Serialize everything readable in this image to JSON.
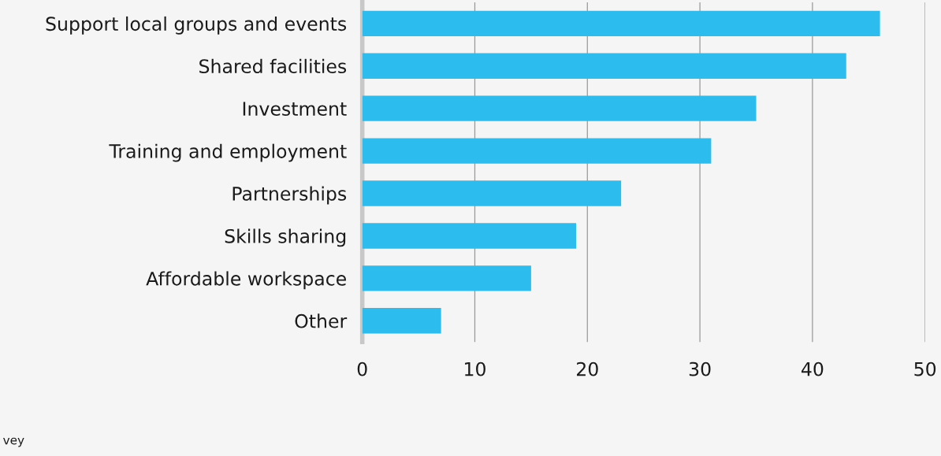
{
  "chart_data": {
    "type": "bar",
    "orientation": "horizontal",
    "categories": [
      "Support local groups and events",
      "Shared facilities",
      "Investment",
      "Training and employment",
      "Partnerships",
      "Skills sharing",
      "Affordable workspace",
      "Other"
    ],
    "values": [
      46,
      43,
      35,
      31,
      23,
      19,
      15,
      7
    ],
    "color": "#2cbdee",
    "xlim": [
      0,
      50
    ],
    "xticks": [
      0,
      10,
      20,
      30,
      40,
      50
    ],
    "grid": "x",
    "annotations": [
      "vey"
    ]
  }
}
